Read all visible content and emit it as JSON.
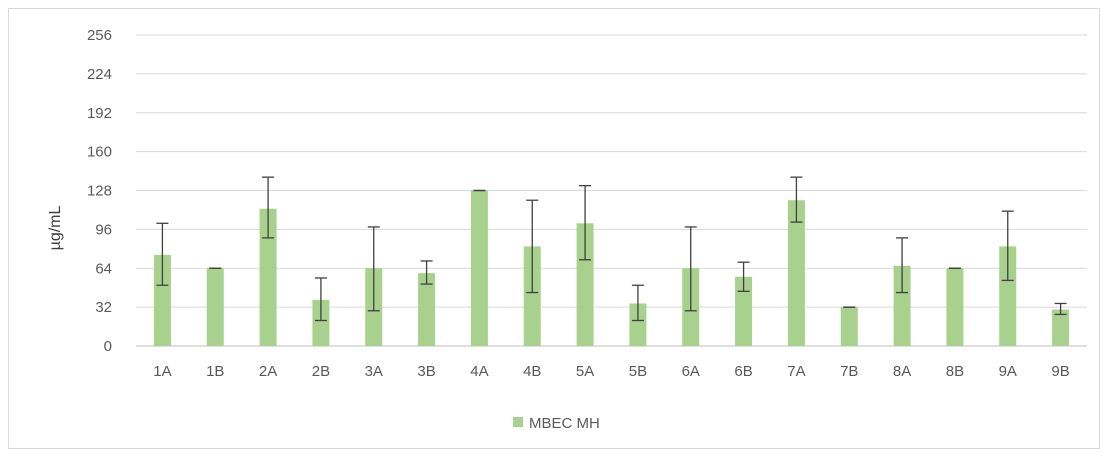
{
  "chart_data": {
    "type": "bar",
    "title": "",
    "xlabel": "",
    "ylabel": "µg/mL",
    "ylim": [
      0,
      256
    ],
    "yticks": [
      0,
      32,
      64,
      96,
      128,
      160,
      192,
      224,
      256
    ],
    "grid": true,
    "legend_position": "bottom",
    "categories": [
      "1A",
      "1B",
      "2A",
      "2B",
      "3A",
      "3B",
      "4A",
      "4B",
      "5A",
      "5B",
      "6A",
      "6B",
      "7A",
      "7B",
      "8A",
      "8B",
      "9A",
      "9B"
    ],
    "series": [
      {
        "name": "MBEC MH",
        "color": "#a9d18e",
        "values": [
          75,
          64,
          113,
          38,
          64,
          60,
          128,
          82,
          101,
          35,
          64,
          57,
          120,
          32,
          66,
          64,
          82,
          30
        ],
        "error_low": [
          50,
          64,
          89,
          21,
          29,
          51,
          128,
          44,
          71,
          21,
          29,
          45,
          102,
          32,
          44,
          64,
          54,
          26
        ],
        "error_high": [
          101,
          64,
          139,
          56,
          98,
          70,
          128,
          120,
          132,
          50,
          98,
          69,
          139,
          32,
          89,
          64,
          111,
          35
        ]
      }
    ]
  }
}
